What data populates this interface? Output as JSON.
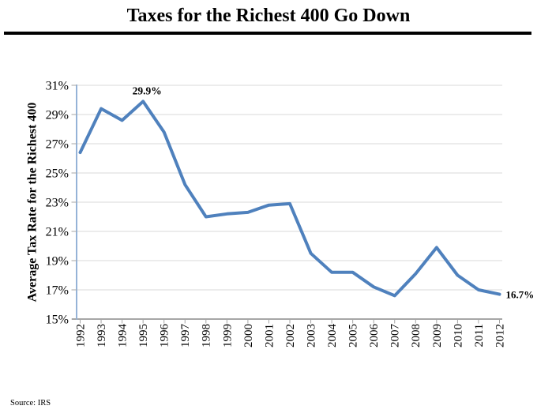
{
  "header": {
    "title": "Taxes for the Richest 400 Go Down"
  },
  "footer": {
    "source": "Source: IRS"
  },
  "chart_data": {
    "type": "line",
    "title": "Taxes for the Richest 400 Go Down",
    "xlabel": "",
    "ylabel": "Average Tax Rate for the Richest 400",
    "categories": [
      "1992",
      "1993",
      "1994",
      "1995",
      "1996",
      "1997",
      "1998",
      "1999",
      "2000",
      "2001",
      "2002",
      "2003",
      "2004",
      "2005",
      "2006",
      "2007",
      "2008",
      "2009",
      "2010",
      "2011",
      "2012"
    ],
    "series": [
      {
        "name": "Average tax rate for the richest 400",
        "values": [
          26.4,
          29.4,
          28.6,
          29.9,
          27.8,
          24.2,
          22.0,
          22.2,
          22.3,
          22.8,
          22.9,
          19.5,
          18.2,
          18.2,
          17.2,
          16.6,
          18.1,
          19.9,
          18.0,
          17.0,
          16.7
        ]
      }
    ],
    "ylim": [
      15,
      31
    ],
    "yticks": [
      15,
      17,
      19,
      21,
      23,
      25,
      27,
      29,
      31
    ],
    "ytick_labels": [
      "15%",
      "17%",
      "19%",
      "21%",
      "23%",
      "25%",
      "27%",
      "29%",
      "31%"
    ],
    "grid": true,
    "legend": "none",
    "annotations": [
      {
        "text": "29.9%",
        "year": "1995",
        "value": 29.9,
        "placement": "above"
      },
      {
        "text": "16.7%",
        "year": "2012",
        "value": 16.7,
        "placement": "right"
      }
    ],
    "colors": {
      "line": "#4F81BD",
      "grid": "#D9D9D9",
      "y_axis": "#95B3D7",
      "x_axis": "#A6A6A6",
      "tick": "#A6A6A6",
      "text": "#000000"
    }
  }
}
